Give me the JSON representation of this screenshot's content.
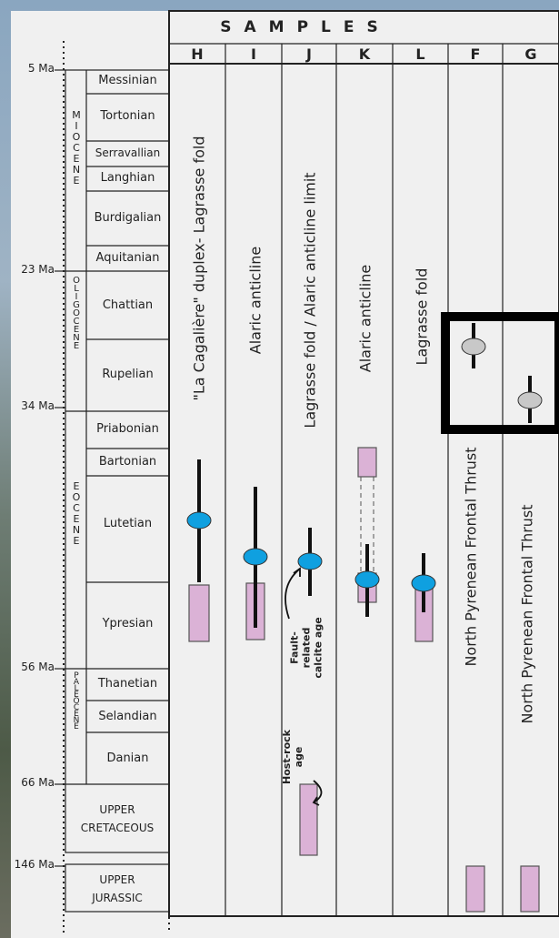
{
  "header": {
    "title": "SAMPLES"
  },
  "samples": [
    {
      "code": "H",
      "label": "\"La Cagalière\" duplex- Lagrasse fold"
    },
    {
      "code": "I",
      "label": "Alaric anticline"
    },
    {
      "code": "J",
      "label": "Lagrasse fold / Alaric anticline limit"
    },
    {
      "code": "K",
      "label": "Alaric anticline"
    },
    {
      "code": "L",
      "label": "Lagrasse fold"
    },
    {
      "code": "F",
      "label": "North Pyrenean Frontal Thrust"
    },
    {
      "code": "G",
      "label": "North Pyrenean Frontal Thrust"
    }
  ],
  "ages": [
    "5 Ma",
    "23 Ma",
    "34 Ma",
    "56 Ma",
    "66 Ma",
    "146 Ma"
  ],
  "epochs": [
    "MIOCENE",
    "OLIGOCENE",
    "EOCENE",
    "PALEOCENE"
  ],
  "stages": [
    "Messinian",
    "Tortonian",
    "Serravallian",
    "Langhian",
    "Burdigalian",
    "Aquitanian",
    "Chattian",
    "Rupelian",
    "Priabonian",
    "Bartonian",
    "Lutetian",
    "Ypresian",
    "Thanetian",
    "Selandian",
    "Danian",
    "UPPER CRETACEOUS",
    "UPPER JURASSIC"
  ],
  "annotations": [
    "Fault-related calcite age",
    "Host-rock age"
  ]
}
